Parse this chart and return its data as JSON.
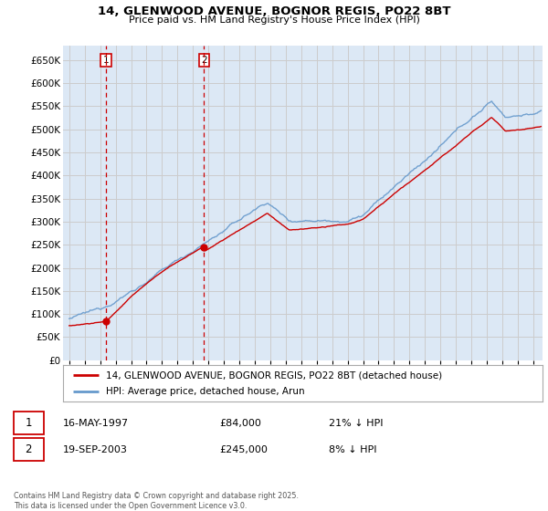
{
  "title_line1": "14, GLENWOOD AVENUE, BOGNOR REGIS, PO22 8BT",
  "title_line2": "Price paid vs. HM Land Registry's House Price Index (HPI)",
  "legend_label_red": "14, GLENWOOD AVENUE, BOGNOR REGIS, PO22 8BT (detached house)",
  "legend_label_blue": "HPI: Average price, detached house, Arun",
  "footer": "Contains HM Land Registry data © Crown copyright and database right 2025.\nThis data is licensed under the Open Government Licence v3.0.",
  "xlim": [
    1994.6,
    2025.6
  ],
  "ylim": [
    0,
    680000
  ],
  "yticks": [
    0,
    50000,
    100000,
    150000,
    200000,
    250000,
    300000,
    350000,
    400000,
    450000,
    500000,
    550000,
    600000,
    650000
  ],
  "ytick_labels": [
    "£0",
    "£50K",
    "£100K",
    "£150K",
    "£200K",
    "£250K",
    "£300K",
    "£350K",
    "£400K",
    "£450K",
    "£500K",
    "£550K",
    "£600K",
    "£650K"
  ],
  "xticks": [
    1995,
    1996,
    1997,
    1998,
    1999,
    2000,
    2001,
    2002,
    2003,
    2004,
    2005,
    2006,
    2007,
    2008,
    2009,
    2010,
    2011,
    2012,
    2013,
    2014,
    2015,
    2016,
    2017,
    2018,
    2019,
    2020,
    2021,
    2022,
    2023,
    2024,
    2025
  ],
  "vline1_x": 1997.37,
  "vline2_x": 2003.72,
  "marker1_y": 84000,
  "marker2_y": 245000,
  "red_color": "#cc0000",
  "blue_color": "#6699cc",
  "grid_color": "#cccccc",
  "bg_color": "#dce8f5",
  "transaction1_date": "16-MAY-1997",
  "transaction1_price": "£84,000",
  "transaction1_hpi": "21% ↓ HPI",
  "transaction2_date": "19-SEP-2003",
  "transaction2_price": "£245,000",
  "transaction2_hpi": "8% ↓ HPI"
}
